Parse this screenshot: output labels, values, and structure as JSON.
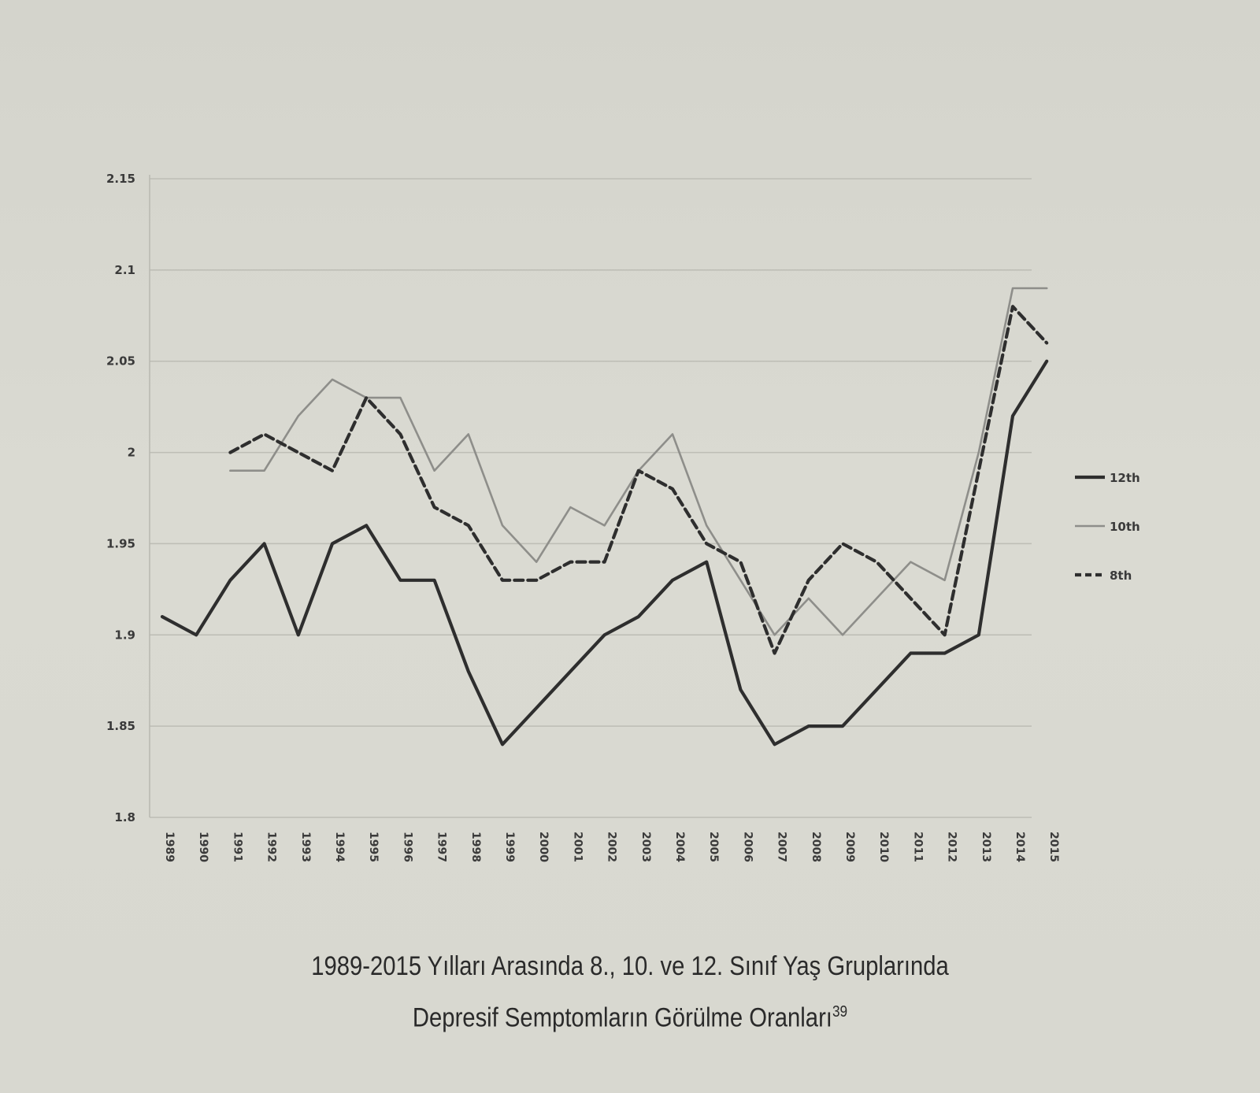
{
  "chart_data": {
    "type": "line",
    "x": [
      "1989",
      "1990",
      "1991",
      "1992",
      "1993",
      "1994",
      "1995",
      "1996",
      "1997",
      "1998",
      "1999",
      "2000",
      "2001",
      "2002",
      "2003",
      "2004",
      "2005",
      "2006",
      "2007",
      "2008",
      "2009",
      "2010",
      "2011",
      "2012",
      "2013",
      "2014",
      "2015"
    ],
    "ylim": [
      1.8,
      2.15
    ],
    "yticks": [
      "2.15",
      "2.1",
      "2.05",
      "2",
      "1.95",
      "1.9",
      "1.85",
      "1.8"
    ],
    "grid": true,
    "legend_position": "right",
    "series": [
      {
        "name": "12th",
        "style": "solid-dark",
        "color": "#2e2e2e",
        "values": [
          1.91,
          1.9,
          1.93,
          1.95,
          1.9,
          1.95,
          1.96,
          1.93,
          1.93,
          1.88,
          1.84,
          1.86,
          1.88,
          1.9,
          1.91,
          1.93,
          1.94,
          1.87,
          1.84,
          1.85,
          1.85,
          1.87,
          1.89,
          1.89,
          1.9,
          2.02,
          2.05
        ]
      },
      {
        "name": "10th",
        "style": "solid-light",
        "color": "#8e8e8a",
        "values": [
          null,
          null,
          1.99,
          1.99,
          2.02,
          2.04,
          2.03,
          2.03,
          1.99,
          2.01,
          1.96,
          1.94,
          1.97,
          1.96,
          1.99,
          2.01,
          1.96,
          1.93,
          1.9,
          1.92,
          1.9,
          1.92,
          1.94,
          1.93,
          2.0,
          2.09,
          2.09
        ]
      },
      {
        "name": "8th",
        "style": "dashed",
        "color": "#2e2e2e",
        "values": [
          null,
          null,
          2.0,
          2.01,
          2.0,
          1.99,
          2.03,
          2.01,
          1.97,
          1.96,
          1.93,
          1.93,
          1.94,
          1.94,
          1.99,
          1.98,
          1.95,
          1.94,
          1.89,
          1.93,
          1.95,
          1.94,
          1.92,
          1.9,
          1.99,
          2.08,
          2.06
        ]
      }
    ]
  },
  "caption": {
    "line1": "1989-2015 Yılları Arasında 8., 10. ve 12. Sınıf Yaş Gruplarında",
    "line2": "Depresif Semptomların Görülme Oranları",
    "footnote": "39"
  }
}
